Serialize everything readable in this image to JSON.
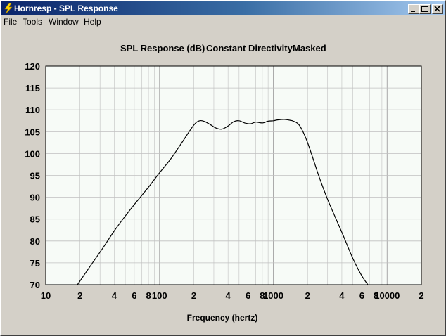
{
  "window": {
    "title": "Hornresp - SPL Response",
    "buttons": {
      "minimize": "minimize",
      "maximize": "maximize",
      "close": "close"
    }
  },
  "menu": {
    "items": [
      "File",
      "Tools",
      "Window",
      "Help"
    ]
  },
  "chart_data": {
    "type": "line",
    "title_parts": [
      "SPL Response (dB)",
      "Constant Directivity",
      "Masked"
    ],
    "xlabel": "Frequency (hertz)",
    "ylabel": "",
    "x_scale": "log",
    "xlim": [
      10,
      20000
    ],
    "ylim": [
      70,
      120
    ],
    "y_ticks": [
      70,
      75,
      80,
      85,
      90,
      95,
      100,
      105,
      110,
      115,
      120
    ],
    "x_tick_labels": [
      {
        "x": 10,
        "label": "10"
      },
      {
        "x": 20,
        "label": "2"
      },
      {
        "x": 40,
        "label": "4"
      },
      {
        "x": 60,
        "label": "6"
      },
      {
        "x": 80,
        "label": "8"
      },
      {
        "x": 100,
        "label": "100"
      },
      {
        "x": 200,
        "label": "2"
      },
      {
        "x": 400,
        "label": "4"
      },
      {
        "x": 600,
        "label": "6"
      },
      {
        "x": 800,
        "label": "8"
      },
      {
        "x": 1000,
        "label": "1000"
      },
      {
        "x": 2000,
        "label": "2"
      },
      {
        "x": 4000,
        "label": "4"
      },
      {
        "x": 6000,
        "label": "6"
      },
      {
        "x": 8000,
        "label": "8"
      },
      {
        "x": 10000,
        "label": "10000"
      },
      {
        "x": 20000,
        "label": "2"
      }
    ],
    "grid": true,
    "colors": {
      "plot_bg": "#f7fbf7",
      "grid": "#c0c0c0",
      "line": "#000000",
      "face": "#d4d0c8"
    },
    "series": [
      {
        "x": [
          19,
          25,
          32,
          40,
          50,
          63,
          80,
          100,
          125,
          160,
          200,
          225,
          250,
          280,
          315,
          355,
          400,
          450,
          500,
          560,
          630,
          700,
          800,
          900,
          1000,
          1100,
          1250,
          1400,
          1500,
          1700,
          2000,
          2500,
          3000,
          4000,
          5000,
          6000,
          7000
        ],
        "y": [
          70,
          74.5,
          78.5,
          82.3,
          85.7,
          89,
          92.3,
          95.6,
          98.7,
          102.8,
          106.5,
          107.5,
          107.3,
          106.6,
          105.8,
          105.6,
          106.3,
          107.3,
          107.5,
          107,
          106.8,
          107.2,
          107.0,
          107.4,
          107.5,
          107.7,
          107.8,
          107.6,
          107.4,
          106.4,
          102.5,
          95,
          89.5,
          82,
          76,
          72,
          69.5
        ]
      }
    ]
  }
}
